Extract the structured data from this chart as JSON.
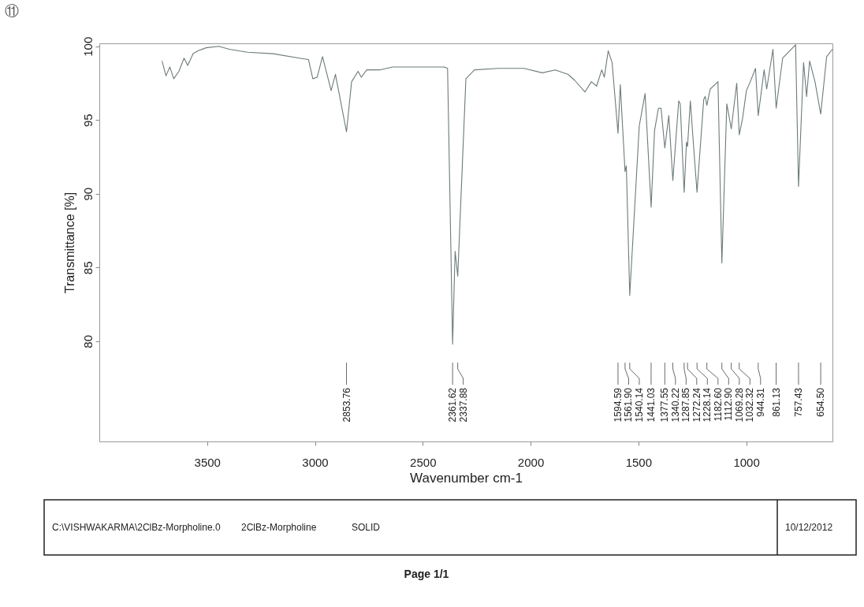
{
  "chart_data": {
    "type": "line",
    "xlabel": "Wavenumber cm-1",
    "ylabel": "Transmittance [%]",
    "x": [
      3709,
      3691,
      3673,
      3655,
      3631,
      3607,
      3590,
      3565,
      3541,
      3505,
      3446,
      3397,
      3313,
      3194,
      3073,
      3030,
      3010,
      2990,
      2965,
      2925,
      2905,
      2853.76,
      2830,
      2800,
      2785,
      2760,
      2700,
      2640,
      2500,
      2400,
      2385,
      2361.62,
      2350,
      2337.88,
      2300,
      2260,
      2150,
      2030,
      1946,
      1886,
      1827,
      1796,
      1748,
      1718,
      1694,
      1670,
      1658,
      1640,
      1622,
      1594.59,
      1584,
      1561.9,
      1556,
      1540.14,
      1496,
      1469,
      1441.03,
      1425,
      1407,
      1395,
      1377.55,
      1359,
      1340.22,
      1313,
      1306,
      1287.85,
      1277,
      1272.24,
      1259,
      1245,
      1228.14,
      1197,
      1190,
      1182.6,
      1167,
      1131,
      1112.9,
      1090,
      1069.28,
      1044,
      1032.32,
      1017,
      999,
      981,
      957,
      944.31,
      917,
      905,
      876,
      861.13,
      831,
      771,
      757.43,
      734,
      720,
      706,
      681,
      654.5,
      627,
      600
    ],
    "series": [
      {
        "color": "#6d7a7a",
        "values": [
          99.0,
          98.0,
          98.6,
          97.8,
          98.3,
          99.2,
          98.7,
          99.5,
          99.7,
          99.9,
          100.0,
          99.8,
          99.6,
          99.5,
          99.2,
          99.1,
          97.8,
          97.9,
          99.3,
          97.0,
          98.1,
          94.2,
          97.6,
          98.3,
          97.9,
          98.4,
          98.4,
          98.6,
          98.6,
          98.6,
          98.5,
          79.8,
          86.1,
          84.4,
          97.8,
          98.4,
          98.5,
          98.5,
          98.2,
          98.4,
          98.1,
          97.7,
          96.9,
          97.6,
          97.3,
          98.4,
          97.9,
          99.7,
          98.9,
          94.1,
          97.4,
          91.5,
          91.9,
          83.1,
          94.6,
          96.8,
          89.1,
          94.3,
          95.8,
          95.8,
          93.1,
          95.3,
          90.9,
          96.3,
          96.1,
          90.1,
          93.5,
          93.2,
          96.3,
          93.4,
          90.1,
          96.4,
          96.6,
          96.0,
          97.1,
          97.6,
          85.3,
          96.1,
          94.4,
          97.5,
          94.0,
          95.1,
          97.0,
          97.6,
          98.5,
          95.3,
          98.4,
          97.1,
          99.8,
          95.8,
          99.2,
          100.1,
          90.5,
          98.9,
          96.6,
          99.0,
          97.6,
          95.4,
          99.3,
          99.8
        ]
      }
    ],
    "xlim": [
      4000,
      600
    ],
    "xticks": [
      3500,
      3000,
      2500,
      2000,
      1500,
      1000
    ],
    "ylim": [
      73.2,
      100.2
    ],
    "yticks": [
      80,
      85,
      90,
      95,
      100
    ],
    "grid": false,
    "annotations": [
      {
        "text": "2853.76",
        "x": 2853.76
      },
      {
        "text": "2361.62",
        "x": 2361.62
      },
      {
        "text": "2337.88",
        "x": 2337.88
      },
      {
        "text": "1594.59",
        "x": 1594.59
      },
      {
        "text": "1561.90",
        "x": 1561.9
      },
      {
        "text": "1540.14",
        "x": 1540.14
      },
      {
        "text": "1441.03",
        "x": 1441.03
      },
      {
        "text": "1377.55",
        "x": 1377.55
      },
      {
        "text": "1340.22",
        "x": 1340.22
      },
      {
        "text": "1287.85",
        "x": 1287.85
      },
      {
        "text": "1272.24",
        "x": 1272.24
      },
      {
        "text": "1228.14",
        "x": 1228.14
      },
      {
        "text": "1182.60",
        "x": 1182.6
      },
      {
        "text": "1112.90",
        "x": 1112.9
      },
      {
        "text": "1069.28",
        "x": 1069.28
      },
      {
        "text": "1032.32",
        "x": 1032.32
      },
      {
        "text": "944.31",
        "x": 944.31
      },
      {
        "text": "861.13",
        "x": 861.13
      },
      {
        "text": "757.43",
        "x": 757.43
      },
      {
        "text": "654.50",
        "x": 654.5
      },
      "⑪",
      "C:\\VISHWAKARMA\\2ClBz-Morpholine.0",
      "2ClBz-Morpholine",
      "SOLID",
      "10/12/2012",
      "Page 1/1"
    ]
  }
}
